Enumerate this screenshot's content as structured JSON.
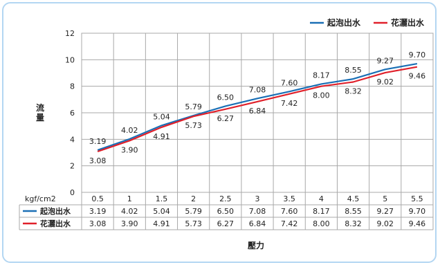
{
  "chart_data": {
    "type": "line",
    "x": [
      "0.5",
      "1",
      "1.5",
      "2",
      "2.5",
      "3",
      "3.5",
      "4",
      "4.5",
      "5",
      "5.5"
    ],
    "x_unit": "kgf/cm2",
    "xlabel": "壓力",
    "ylabel": "流量",
    "ylim": [
      0,
      12
    ],
    "yticks": [
      "0",
      "2",
      "4",
      "6",
      "8",
      "10",
      "12"
    ],
    "grid": true,
    "legend_position": "top-right",
    "series": [
      {
        "name": "起泡出水",
        "color": "#1a6fb5",
        "values": [
          3.19,
          4.02,
          5.04,
          5.79,
          6.5,
          7.08,
          7.6,
          8.17,
          8.55,
          9.27,
          9.7
        ],
        "labels": [
          "3.19",
          "4.02",
          "5.04",
          "5.79",
          "6.50",
          "7.08",
          "7.60",
          "8.17",
          "8.55",
          "9.27",
          "9.70"
        ]
      },
      {
        "name": "花灑出水",
        "color": "#e0202a",
        "values": [
          3.08,
          3.9,
          4.91,
          5.73,
          6.27,
          6.84,
          7.42,
          8.0,
          8.32,
          9.02,
          9.46
        ],
        "labels": [
          "3.08",
          "3.90",
          "4.91",
          "5.73",
          "6.27",
          "6.84",
          "7.42",
          "8.00",
          "8.32",
          "9.02",
          "9.46"
        ]
      }
    ]
  }
}
